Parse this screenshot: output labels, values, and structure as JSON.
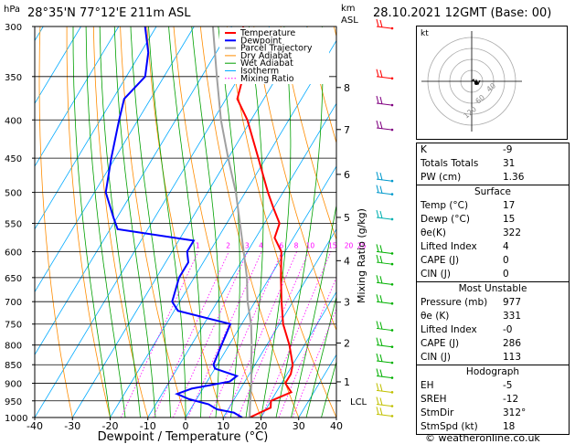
{
  "header": {
    "units_label": "hPa",
    "location": "28°35'N  77°12'E  211m  ASL",
    "km_label": "km",
    "asl_label": "ASL",
    "datetime": "28.10.2021  12GMT  (Base: 00)"
  },
  "footer": {
    "credit": "© weatheronline.co.uk"
  },
  "hodograph": {
    "unit_label": "kt",
    "ring_labels": [
      "40",
      "60",
      "120"
    ]
  },
  "colors": {
    "temperature": "#ff0000",
    "dewpoint": "#0000ff",
    "parcel": "#a0a0a0",
    "dry_adiabat": "#ff8c00",
    "wet_adiabat": "#00a000",
    "isotherm": "#00aaff",
    "mixing_ratio": "#ff00ff"
  },
  "stats": {
    "k": {
      "label": "K",
      "value": "-9"
    },
    "tt": {
      "label": "Totals Totals",
      "value": "31"
    },
    "pw": {
      "label": "PW (cm)",
      "value": "1.36"
    }
  },
  "surface": {
    "title": "Surface",
    "rows": [
      {
        "label": "Temp (°C)",
        "value": "17"
      },
      {
        "label": "Dewp (°C)",
        "value": "15"
      },
      {
        "label": "θe(K)",
        "value": "322"
      },
      {
        "label": "Lifted Index",
        "value": "4"
      },
      {
        "label": "CAPE (J)",
        "value": "0"
      },
      {
        "label": "CIN (J)",
        "value": "0"
      }
    ]
  },
  "unstable": {
    "title": "Most Unstable",
    "rows": [
      {
        "label": "Pressure (mb)",
        "value": "977"
      },
      {
        "label": "θe (K)",
        "value": "331"
      },
      {
        "label": "Lifted Index",
        "value": "-0"
      },
      {
        "label": "CAPE (J)",
        "value": "286"
      },
      {
        "label": "CIN (J)",
        "value": "113"
      }
    ]
  },
  "hodo_stats": {
    "title": "Hodograph",
    "rows": [
      {
        "label": "EH",
        "value": "-5"
      },
      {
        "label": "SREH",
        "value": "-12"
      },
      {
        "label": "StmDir",
        "value": "312°"
      },
      {
        "label": "StmSpd (kt)",
        "value": "18"
      }
    ]
  },
  "chart_data": {
    "type": "line",
    "chart_kind": "Skew-T log-P sounding",
    "xlabel": "Dewpoint / Temperature (°C)",
    "ylabel": "Mixing Ratio (g/kg)",
    "x_ticks": [
      -40,
      -30,
      -20,
      -10,
      0,
      10,
      20,
      30,
      40
    ],
    "xlim": [
      -40,
      40
    ],
    "p_ticks": [
      300,
      350,
      400,
      450,
      500,
      550,
      600,
      650,
      700,
      750,
      800,
      850,
      900,
      950,
      1000
    ],
    "plim": [
      1000,
      300
    ],
    "y_scale": "log",
    "km_ticks": [
      {
        "label": "8",
        "p": 362
      },
      {
        "label": "7",
        "p": 412
      },
      {
        "label": "6",
        "p": 473
      },
      {
        "label": "5",
        "p": 540
      },
      {
        "label": "4",
        "p": 617
      },
      {
        "label": "3",
        "p": 701
      },
      {
        "label": "2",
        "p": 795
      },
      {
        "label": "1",
        "p": 896
      }
    ],
    "lcl": {
      "label": "LCL",
      "p": 950
    },
    "mixing_ratio_labels": [
      "1",
      "2",
      "3",
      "4",
      "6",
      "8",
      "10",
      "15",
      "20",
      "25"
    ],
    "legend_items": [
      "Temperature",
      "Dewpoint",
      "Parcel Trajectory",
      "Dry Adiabat",
      "Wet Adiabat",
      "Isotherm",
      "Mixing Ratio"
    ],
    "legend_position": "top-left",
    "series": [
      {
        "name": "Temperature",
        "points": [
          [
            1000,
            17
          ],
          [
            970,
            21
          ],
          [
            950,
            20
          ],
          [
            925,
            24
          ],
          [
            900,
            21
          ],
          [
            875,
            21
          ],
          [
            850,
            20
          ],
          [
            800,
            16
          ],
          [
            750,
            11
          ],
          [
            700,
            7
          ],
          [
            650,
            3
          ],
          [
            600,
            -1
          ],
          [
            575,
            -5
          ],
          [
            550,
            -6
          ],
          [
            525,
            -10
          ],
          [
            500,
            -14
          ],
          [
            450,
            -22
          ],
          [
            400,
            -31
          ],
          [
            375,
            -37
          ],
          [
            350,
            -39
          ],
          [
            325,
            -42
          ],
          [
            300,
            -47
          ]
        ]
      },
      {
        "name": "Dewpoint",
        "points": [
          [
            1000,
            15
          ],
          [
            985,
            12
          ],
          [
            975,
            7
          ],
          [
            960,
            4
          ],
          [
            945,
            -2
          ],
          [
            930,
            -6
          ],
          [
            915,
            -3
          ],
          [
            895,
            6
          ],
          [
            880,
            7
          ],
          [
            860,
            0
          ],
          [
            850,
            -1
          ],
          [
            800,
            -2
          ],
          [
            750,
            -3
          ],
          [
            720,
            -19
          ],
          [
            700,
            -22
          ],
          [
            650,
            -24
          ],
          [
            620,
            -24
          ],
          [
            600,
            -26
          ],
          [
            580,
            -26
          ],
          [
            560,
            -48
          ],
          [
            540,
            -51
          ],
          [
            500,
            -57
          ],
          [
            450,
            -61
          ],
          [
            400,
            -65
          ],
          [
            375,
            -67
          ],
          [
            350,
            -65
          ],
          [
            325,
            -68
          ],
          [
            300,
            -73
          ]
        ]
      },
      {
        "name": "Parcel Trajectory",
        "points": [
          [
            1000,
            17
          ],
          [
            960,
            15
          ],
          [
            900,
            12
          ],
          [
            850,
            9
          ],
          [
            800,
            6
          ],
          [
            750,
            2.5
          ],
          [
            700,
            -2
          ],
          [
            650,
            -6
          ],
          [
            600,
            -11
          ],
          [
            550,
            -16.5
          ],
          [
            500,
            -22.5
          ],
          [
            450,
            -30
          ],
          [
            400,
            -38
          ],
          [
            350,
            -46
          ],
          [
            300,
            -55
          ]
        ]
      }
    ],
    "wind_barbs": [
      {
        "p": 300,
        "color": "#ff0000"
      },
      {
        "p": 350,
        "color": "#ff0000"
      },
      {
        "p": 380,
        "color": "#800080"
      },
      {
        "p": 410,
        "color": "#800080"
      },
      {
        "p": 480,
        "color": "#0099cc"
      },
      {
        "p": 500,
        "color": "#0099cc"
      },
      {
        "p": 540,
        "color": "#00b0b0"
      },
      {
        "p": 600,
        "color": "#00b000"
      },
      {
        "p": 620,
        "color": "#00b000"
      },
      {
        "p": 660,
        "color": "#00b000"
      },
      {
        "p": 700,
        "color": "#00b000"
      },
      {
        "p": 760,
        "color": "#00b000"
      },
      {
        "p": 800,
        "color": "#00b000"
      },
      {
        "p": 840,
        "color": "#00b000"
      },
      {
        "p": 880,
        "color": "#00b000"
      },
      {
        "p": 920,
        "color": "#c0c000"
      },
      {
        "p": 960,
        "color": "#c0c000"
      },
      {
        "p": 990,
        "color": "#c0c000"
      }
    ]
  }
}
